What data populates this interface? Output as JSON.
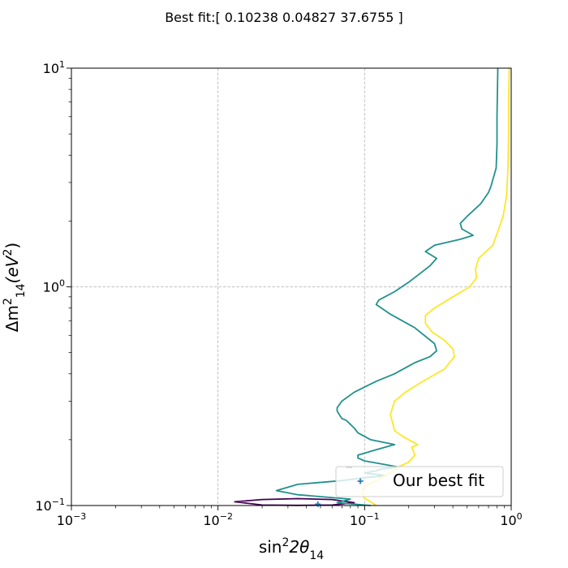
{
  "chart_data": {
    "type": "line",
    "title": "Best fit:[ 0.10238  0.04827 37.6755 ]",
    "xlabel": {
      "base": "sin",
      "sup": "2",
      "mid": "2θ",
      "sub": "14"
    },
    "ylabel": {
      "pre": "Δm",
      "sup": "2",
      "sub": "14",
      "post": "(eV",
      "sup2": "2",
      "close": ")"
    },
    "x_scale": "log",
    "y_scale": "log",
    "xlim": [
      0.001,
      1
    ],
    "ylim": [
      0.1,
      10
    ],
    "grid": true,
    "legend_position": "lower-right",
    "legend": [
      {
        "label": "Our best fit",
        "marker": "+",
        "color": "#1f77b4"
      }
    ],
    "x_ticks": [
      {
        "value": 0.001,
        "base": "10",
        "exp": "−3"
      },
      {
        "value": 0.01,
        "base": "10",
        "exp": "−2"
      },
      {
        "value": 0.1,
        "base": "10",
        "exp": "−1"
      },
      {
        "value": 1,
        "base": "10",
        "exp": "0"
      }
    ],
    "y_ticks": [
      {
        "value": 0.1,
        "base": "10",
        "exp": "−1"
      },
      {
        "value": 1,
        "base": "10",
        "exp": "0"
      },
      {
        "value": 10,
        "base": "10",
        "exp": "1"
      }
    ],
    "series": [
      {
        "color": "#440154",
        "closed": true,
        "points": [
          [
            0.013,
            0.104
          ],
          [
            0.02,
            0.1065
          ],
          [
            0.035,
            0.1075
          ],
          [
            0.06,
            0.1065
          ],
          [
            0.085,
            0.103
          ],
          [
            0.06,
            0.1005
          ],
          [
            0.035,
            0.1002
          ],
          [
            0.02,
            0.1005
          ],
          [
            0.013,
            0.104
          ]
        ]
      },
      {
        "color": "#440154",
        "closed": false,
        "points": [
          [
            0.075,
            0.149
          ],
          [
            0.078,
            0.15
          ],
          [
            0.082,
            0.149
          ]
        ]
      },
      {
        "color": "#21918c",
        "closed": false,
        "points": [
          [
            0.11,
            0.1
          ],
          [
            0.065,
            0.103
          ],
          [
            0.08,
            0.107
          ],
          [
            0.035,
            0.112
          ],
          [
            0.025,
            0.117
          ],
          [
            0.035,
            0.125
          ],
          [
            0.07,
            0.13
          ],
          [
            0.1,
            0.134
          ],
          [
            0.14,
            0.137
          ],
          [
            0.1,
            0.141
          ],
          [
            0.12,
            0.144
          ],
          [
            0.13,
            0.147
          ],
          [
            0.17,
            0.15
          ],
          [
            0.1,
            0.16
          ],
          [
            0.09,
            0.165
          ],
          [
            0.09,
            0.17
          ],
          [
            0.12,
            0.18
          ],
          [
            0.16,
            0.19
          ],
          [
            0.11,
            0.2
          ],
          [
            0.09,
            0.215
          ],
          [
            0.085,
            0.226
          ],
          [
            0.075,
            0.245
          ],
          [
            0.07,
            0.25
          ],
          [
            0.065,
            0.27
          ],
          [
            0.065,
            0.28
          ],
          [
            0.07,
            0.3
          ],
          [
            0.085,
            0.33
          ],
          [
            0.12,
            0.37
          ],
          [
            0.16,
            0.4
          ],
          [
            0.22,
            0.45
          ],
          [
            0.28,
            0.48
          ],
          [
            0.31,
            0.51
          ],
          [
            0.3,
            0.55
          ],
          [
            0.22,
            0.65
          ],
          [
            0.15,
            0.75
          ],
          [
            0.12,
            0.83
          ],
          [
            0.125,
            0.87
          ],
          [
            0.16,
            0.95
          ],
          [
            0.2,
            1.05
          ],
          [
            0.28,
            1.25
          ],
          [
            0.31,
            1.35
          ],
          [
            0.26,
            1.45
          ],
          [
            0.3,
            1.55
          ],
          [
            0.45,
            1.65
          ],
          [
            0.55,
            1.72
          ],
          [
            0.46,
            1.84
          ],
          [
            0.45,
            1.95
          ],
          [
            0.5,
            2.1
          ],
          [
            0.62,
            2.4
          ],
          [
            0.66,
            2.55
          ],
          [
            0.7,
            2.7
          ],
          [
            0.73,
            2.9
          ],
          [
            0.79,
            3.5
          ],
          [
            0.8,
            4.5
          ],
          [
            0.8,
            6
          ],
          [
            0.81,
            10
          ]
        ]
      },
      {
        "color": "#fde725",
        "closed": false,
        "points": [
          [
            0.12,
            0.1
          ],
          [
            0.11,
            0.104
          ],
          [
            0.1,
            0.108
          ],
          [
            0.095,
            0.115
          ],
          [
            0.1,
            0.122
          ],
          [
            0.12,
            0.13
          ],
          [
            0.14,
            0.138
          ],
          [
            0.16,
            0.145
          ],
          [
            0.17,
            0.15
          ],
          [
            0.2,
            0.158
          ],
          [
            0.22,
            0.17
          ],
          [
            0.21,
            0.185
          ],
          [
            0.23,
            0.19
          ],
          [
            0.2,
            0.2
          ],
          [
            0.18,
            0.208
          ],
          [
            0.16,
            0.22
          ],
          [
            0.155,
            0.24
          ],
          [
            0.15,
            0.26
          ],
          [
            0.16,
            0.3
          ],
          [
            0.19,
            0.33
          ],
          [
            0.25,
            0.37
          ],
          [
            0.35,
            0.42
          ],
          [
            0.41,
            0.48
          ],
          [
            0.4,
            0.52
          ],
          [
            0.35,
            0.57
          ],
          [
            0.29,
            0.62
          ],
          [
            0.26,
            0.68
          ],
          [
            0.26,
            0.74
          ],
          [
            0.3,
            0.8
          ],
          [
            0.4,
            0.9
          ],
          [
            0.52,
            1.0
          ],
          [
            0.58,
            1.1
          ],
          [
            0.57,
            1.2
          ],
          [
            0.6,
            1.35
          ],
          [
            0.75,
            1.55
          ],
          [
            0.8,
            1.75
          ],
          [
            0.88,
            2.1
          ],
          [
            0.93,
            2.6
          ],
          [
            0.95,
            3.5
          ],
          [
            0.96,
            5
          ],
          [
            0.96,
            7
          ],
          [
            0.97,
            10
          ]
        ]
      }
    ],
    "markers": [
      {
        "x": 0.048,
        "y": 0.1015,
        "symbol": "+",
        "color": "#1f77b4"
      },
      {
        "x": 0.095,
        "y": 0.13,
        "symbol": "+",
        "color": "#1f77b4"
      }
    ]
  }
}
